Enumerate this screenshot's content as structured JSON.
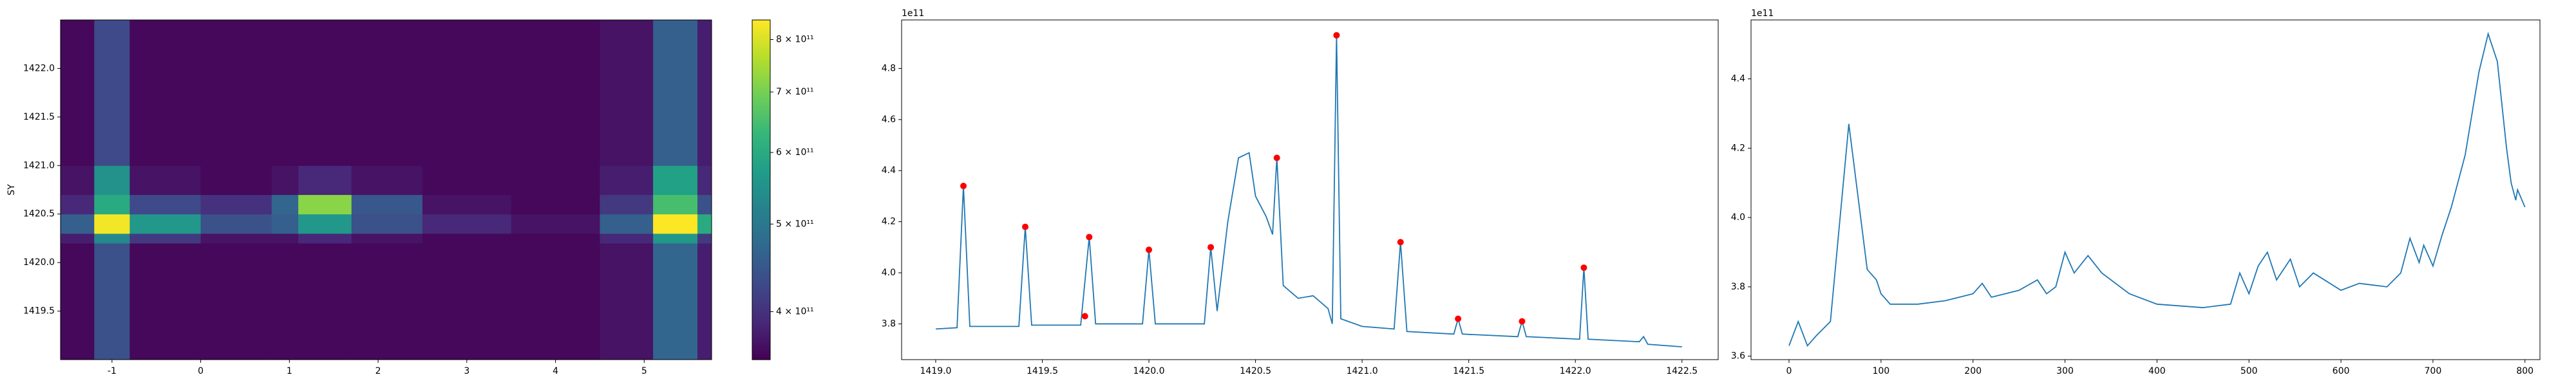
{
  "chart_data": [
    {
      "type": "heatmap",
      "ylabel": "SY",
      "colormap": "viridis",
      "x_bins": [
        -1.58,
        -1.2,
        -0.8,
        0,
        0.8,
        1.1,
        1.7,
        2.5,
        3.5,
        4.5,
        5.1,
        5.6,
        5.76
      ],
      "y_bins": [
        1419.0,
        1420.2,
        1420.3,
        1420.5,
        1420.7,
        1421.0,
        1422.5
      ],
      "z": [
        [
          360000000000.0,
          440000000000.0,
          360000000000.0,
          360000000000.0,
          360000000000.0,
          360000000000.0,
          360000000000.0,
          360000000000.0,
          360000000000.0,
          370000000000.0,
          470000000000.0,
          380000000000.0
        ],
        [
          380000000000.0,
          530000000000.0,
          410000000000.0,
          370000000000.0,
          370000000000.0,
          390000000000.0,
          370000000000.0,
          360000000000.0,
          360000000000.0,
          390000000000.0,
          560000000000.0,
          410000000000.0
        ],
        [
          460000000000.0,
          830000000000.0,
          560000000000.0,
          440000000000.0,
          460000000000.0,
          560000000000.0,
          440000000000.0,
          390000000000.0,
          370000000000.0,
          460000000000.0,
          840000000000.0,
          600000000000.0
        ],
        [
          390000000000.0,
          600000000000.0,
          430000000000.0,
          400000000000.0,
          470000000000.0,
          720000000000.0,
          450000000000.0,
          370000000000.0,
          360000000000.0,
          410000000000.0,
          650000000000.0,
          440000000000.0
        ],
        [
          370000000000.0,
          550000000000.0,
          370000000000.0,
          360000000000.0,
          370000000000.0,
          390000000000.0,
          370000000000.0,
          360000000000.0,
          360000000000.0,
          380000000000.0,
          580000000000.0,
          390000000000.0
        ],
        [
          360000000000.0,
          430000000000.0,
          360000000000.0,
          360000000000.0,
          360000000000.0,
          360000000000.0,
          360000000000.0,
          360000000000.0,
          360000000000.0,
          370000000000.0,
          460000000000.0,
          380000000000.0
        ]
      ],
      "xlim": [
        -1.58,
        5.76
      ],
      "xticks": [
        -1,
        0,
        1,
        2,
        3,
        4,
        5
      ],
      "ylim": [
        1419.0,
        1422.5
      ],
      "yticks": [
        {
          "value": 1419.5,
          "label": "1419.5"
        },
        {
          "value": 1420.0,
          "label": "1420.0"
        },
        {
          "value": 1420.5,
          "label": "1420.5"
        },
        {
          "value": 1421.0,
          "label": "1421.0"
        },
        {
          "value": 1421.5,
          "label": "1421.5"
        },
        {
          "value": 1422.0,
          "label": "1422.0"
        }
      ],
      "colorbar": {
        "scale": "log",
        "lim": [
          354000000000.0,
          841000000000.0
        ],
        "ticks": [
          {
            "value": 400000000000.0,
            "label": "4 × 10¹¹"
          },
          {
            "value": 500000000000.0,
            "label": "5 × 10¹¹"
          },
          {
            "value": 600000000000.0,
            "label": "6 × 10¹¹"
          },
          {
            "value": 700000000000.0,
            "label": "7 × 10¹¹"
          },
          {
            "value": 800000000000.0,
            "label": "8 × 10¹¹"
          }
        ]
      }
    },
    {
      "type": "line",
      "offset_text": "1e11",
      "xlim": [
        1418.84,
        1422.67
      ],
      "xticks": [
        {
          "value": 1419.0,
          "label": "1419.0"
        },
        {
          "value": 1419.5,
          "label": "1419.5"
        },
        {
          "value": 1420.0,
          "label": "1420.0"
        },
        {
          "value": 1420.5,
          "label": "1420.5"
        },
        {
          "value": 1421.0,
          "label": "1421.0"
        },
        {
          "value": 1421.5,
          "label": "1421.5"
        },
        {
          "value": 1422.0,
          "label": "1422.0"
        },
        {
          "value": 1422.5,
          "label": "1422.5"
        }
      ],
      "ylim": [
        366000000000.0,
        499000000000.0
      ],
      "yticks": [
        {
          "value": 380000000000.0,
          "label": "3.8"
        },
        {
          "value": 400000000000.0,
          "label": "4.0"
        },
        {
          "value": 420000000000.0,
          "label": "4.2"
        },
        {
          "value": 440000000000.0,
          "label": "4.4"
        },
        {
          "value": 460000000000.0,
          "label": "4.6"
        },
        {
          "value": 480000000000.0,
          "label": "4.8"
        }
      ],
      "series": [
        {
          "style": "line",
          "color": "#1f77b4",
          "x": [
            1419.0,
            1419.1,
            1419.13,
            1419.16,
            1419.39,
            1419.42,
            1419.45,
            1419.68,
            1419.72,
            1419.75,
            1419.97,
            1420.0,
            1420.03,
            1420.26,
            1420.29,
            1420.32,
            1420.37,
            1420.42,
            1420.47,
            1420.5,
            1420.55,
            1420.58,
            1420.6,
            1420.63,
            1420.7,
            1420.77,
            1420.84,
            1420.86,
            1420.88,
            1420.9,
            1421.0,
            1421.15,
            1421.18,
            1421.21,
            1421.43,
            1421.45,
            1421.47,
            1421.73,
            1421.75,
            1421.77,
            1422.02,
            1422.04,
            1422.06,
            1422.3,
            1422.32,
            1422.34,
            1422.5
          ],
          "values": [
            378000000000.0,
            378500000000.0,
            434000000000.0,
            379000000000.0,
            379000000000.0,
            418000000000.0,
            379500000000.0,
            379500000000.0,
            414000000000.0,
            380000000000.0,
            380000000000.0,
            409000000000.0,
            380000000000.0,
            380000000000.0,
            410000000000.0,
            385000000000.0,
            420000000000.0,
            445000000000.0,
            447000000000.0,
            430000000000.0,
            422000000000.0,
            415000000000.0,
            445000000000.0,
            395000000000.0,
            390000000000.0,
            391000000000.0,
            386000000000.0,
            380000000000.0,
            493000000000.0,
            382000000000.0,
            379000000000.0,
            378000000000.0,
            412000000000.0,
            377000000000.0,
            376000000000.0,
            382000000000.0,
            376000000000.0,
            375000000000.0,
            381000000000.0,
            375000000000.0,
            374000000000.0,
            402000000000.0,
            374000000000.0,
            373000000000.0,
            375000000000.0,
            372000000000.0,
            371000000000.0
          ]
        },
        {
          "style": "points",
          "color": "#ff0000",
          "x": [
            1419.13,
            1419.42,
            1419.7,
            1419.72,
            1420.0,
            1420.29,
            1420.6,
            1420.88,
            1421.18,
            1421.45,
            1421.75,
            1422.04
          ],
          "values": [
            434000000000.0,
            418000000000.0,
            383000000000.0,
            414000000000.0,
            409000000000.0,
            410000000000.0,
            445000000000.0,
            493000000000.0,
            412000000000.0,
            382000000000.0,
            381000000000.0,
            402000000000.0
          ]
        }
      ]
    },
    {
      "type": "line",
      "offset_text": "1e11",
      "xlim": [
        -41.3,
        816.3
      ],
      "xticks": [
        0,
        100,
        200,
        300,
        400,
        500,
        600,
        700,
        800
      ],
      "ylim": [
        359000000000.0,
        457000000000.0
      ],
      "yticks": [
        {
          "value": 360000000000.0,
          "label": "3.6"
        },
        {
          "value": 380000000000.0,
          "label": "3.8"
        },
        {
          "value": 400000000000.0,
          "label": "4.0"
        },
        {
          "value": 420000000000.0,
          "label": "4.2"
        },
        {
          "value": 440000000000.0,
          "label": "4.4"
        }
      ],
      "series": [
        {
          "style": "line",
          "color": "#1f77b4",
          "x": [
            0,
            10,
            20,
            30,
            45,
            65,
            85,
            95,
            100,
            110,
            140,
            170,
            200,
            210,
            220,
            250,
            270,
            280,
            290,
            300,
            310,
            325,
            340,
            370,
            400,
            450,
            480,
            490,
            500,
            510,
            520,
            530,
            545,
            555,
            570,
            600,
            620,
            650,
            665,
            675,
            685,
            690,
            700,
            710,
            720,
            735,
            750,
            760,
            770,
            780,
            785,
            790,
            792,
            800
          ],
          "values": [
            363000000000.0,
            370000000000.0,
            363000000000.0,
            366000000000.0,
            370000000000.0,
            427000000000.0,
            385000000000.0,
            382000000000.0,
            378000000000.0,
            375000000000.0,
            375000000000.0,
            376000000000.0,
            378000000000.0,
            381000000000.0,
            377000000000.0,
            379000000000.0,
            382000000000.0,
            378000000000.0,
            380000000000.0,
            390000000000.0,
            384000000000.0,
            389000000000.0,
            384000000000.0,
            378000000000.0,
            375000000000.0,
            374000000000.0,
            375000000000.0,
            384000000000.0,
            378000000000.0,
            386000000000.0,
            390000000000.0,
            382000000000.0,
            388000000000.0,
            380000000000.0,
            384000000000.0,
            379000000000.0,
            381000000000.0,
            380000000000.0,
            384000000000.0,
            394000000000.0,
            387000000000.0,
            392000000000.0,
            386000000000.0,
            395000000000.0,
            403000000000.0,
            418000000000.0,
            442000000000.0,
            453000000000.0,
            445000000000.0,
            420000000000.0,
            410000000000.0,
            405000000000.0,
            408000000000.0,
            403000000000.0
          ]
        }
      ]
    }
  ]
}
